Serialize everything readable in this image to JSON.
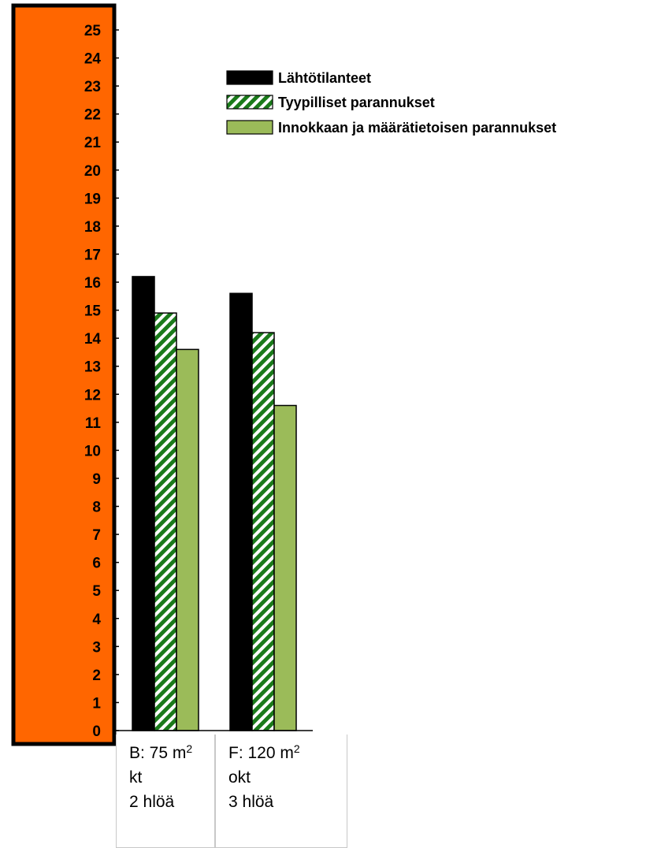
{
  "chart_data": {
    "type": "bar",
    "title": "",
    "xlabel": "",
    "ylabel": "",
    "ylim": [
      0,
      25
    ],
    "yticks": [
      "0",
      "1",
      "2",
      "3",
      "4",
      "5",
      "6",
      "7",
      "8",
      "9",
      "10",
      "11",
      "12",
      "13",
      "14",
      "15",
      "16",
      "17",
      "18",
      "19",
      "20",
      "21",
      "22",
      "23",
      "24",
      "25"
    ],
    "grid": false,
    "legend_position": "top-right",
    "categories": [
      {
        "name": "B: 75 m",
        "superscript": "2",
        "line2": "kt",
        "line3": "2 hlöä"
      },
      {
        "name": "F: 120 m",
        "superscript": "2",
        "line2": "okt",
        "line3": "3 hlöä"
      }
    ],
    "series": [
      {
        "name": "Lähtötilanteet",
        "values": [
          16.2,
          15.6
        ],
        "color": "#000000",
        "pattern": "solid"
      },
      {
        "name": "Tyypilliset parannukset",
        "values": [
          14.9,
          14.2
        ],
        "color": "#1a7a1a",
        "pattern": "hatched"
      },
      {
        "name": "Innokkaan ja määrätietoisen parannukset",
        "values": [
          13.6,
          11.6
        ],
        "color": "#9bbb59",
        "pattern": "solid"
      }
    ],
    "colors": {
      "axis_band": "#ff6600",
      "hatch": "#1a7a1a",
      "bar_edge": "#000000"
    }
  }
}
